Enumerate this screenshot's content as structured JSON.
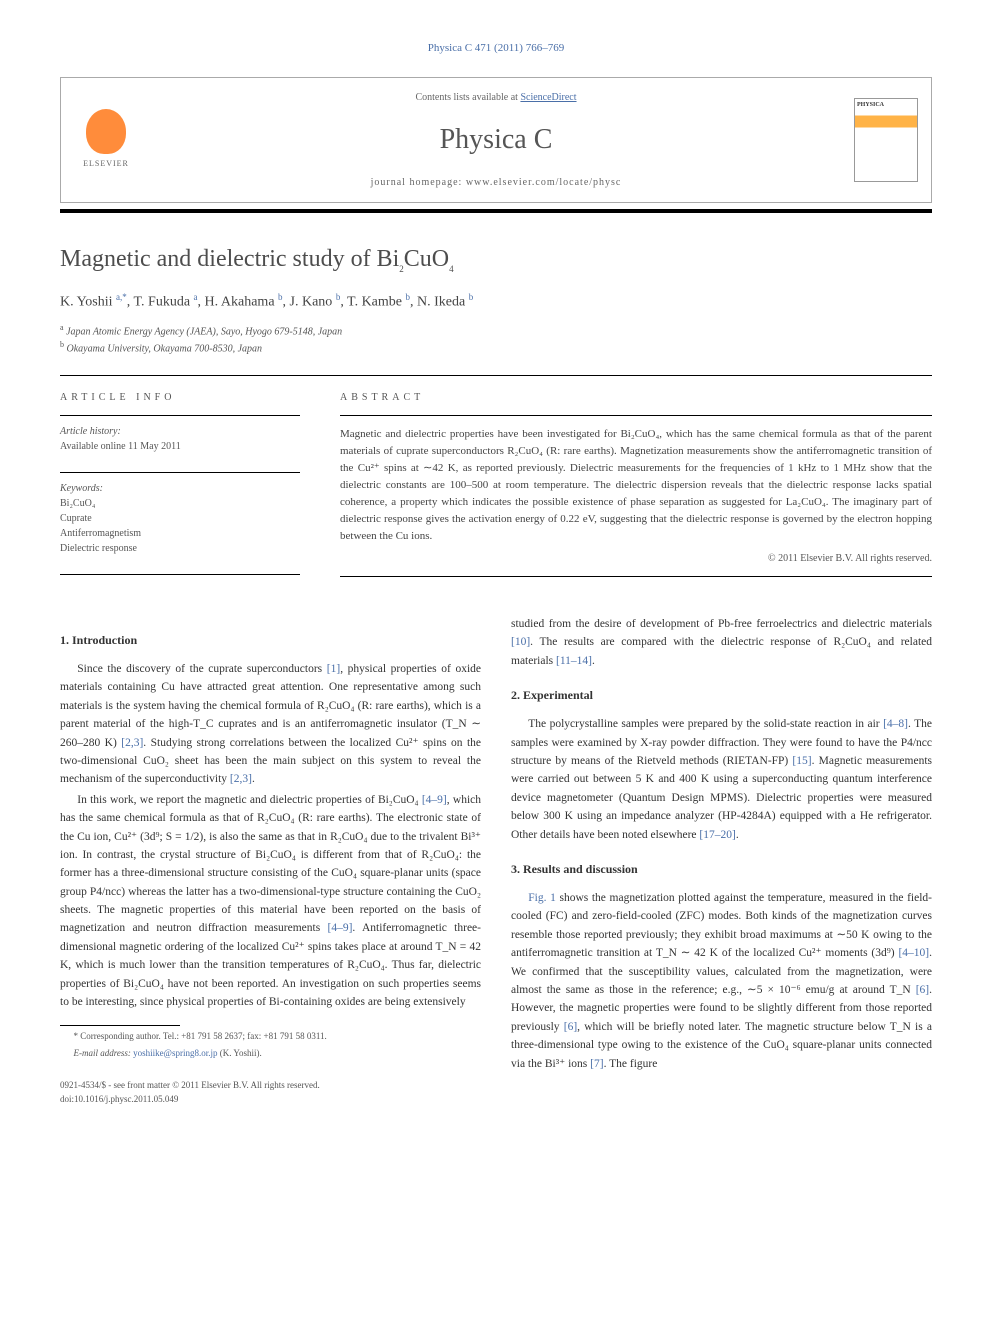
{
  "citation": "Physica C 471 (2011) 766–769",
  "masthead": {
    "contents_prefix": "Contents lists available at ",
    "contents_link": "ScienceDirect",
    "journal": "Physica C",
    "homepage_prefix": "journal homepage: ",
    "homepage": "www.elsevier.com/locate/physc",
    "publisher": "ELSEVIER"
  },
  "article": {
    "title_pre": "Magnetic and dielectric study of Bi",
    "title_sub1": "2",
    "title_mid": "CuO",
    "title_sub2": "4",
    "authors_html": "K. Yoshii <sup>a,*</sup>, T. Fukuda <sup>a</sup>, H. Akahama <sup>b</sup>, J. Kano <sup>b</sup>, T. Kambe <sup>b</sup>, N. Ikeda <sup>b</sup>",
    "affiliations": [
      "a Japan Atomic Energy Agency (JAEA), Sayo, Hyogo 679-5148, Japan",
      "b Okayama University, Okayama 700-8530, Japan"
    ]
  },
  "info": {
    "heading": "ARTICLE INFO",
    "history_label": "Article history:",
    "history_value": "Available online 11 May 2011",
    "keywords_label": "Keywords:",
    "keywords": [
      "Bi₂CuO₄",
      "Cuprate",
      "Antiferromagnetism",
      "Dielectric response"
    ]
  },
  "abstract": {
    "heading": "ABSTRACT",
    "text": "Magnetic and dielectric properties have been investigated for Bi₂CuO₄, which has the same chemical formula as that of the parent materials of cuprate superconductors R₂CuO₄ (R: rare earths). Magnetization measurements show the antiferromagnetic transition of the Cu²⁺ spins at ∼42 K, as reported previously. Dielectric measurements for the frequencies of 1 kHz to 1 MHz show that the dielectric constants are 100–500 at room temperature. The dielectric dispersion reveals that the dielectric response lacks spatial coherence, a property which indicates the possible existence of phase separation as suggested for La₂CuO₄. The imaginary part of dielectric response gives the activation energy of 0.22 eV, suggesting that the dielectric response is governed by the electron hopping between the Cu ions.",
    "copyright": "© 2011 Elsevier B.V. All rights reserved."
  },
  "sections": {
    "intro_heading": "1. Introduction",
    "intro_p1": "Since the discovery of the cuprate superconductors [1], physical properties of oxide materials containing Cu have attracted great attention. One representative among such materials is the system having the chemical formula of R₂CuO₄ (R: rare earths), which is a parent material of the high-T_C cuprates and is an antiferromagnetic insulator (T_N ∼ 260–280 K) [2,3]. Studying strong correlations between the localized Cu²⁺ spins on the two-dimensional CuO₂ sheet has been the main subject on this system to reveal the mechanism of the superconductivity [2,3].",
    "intro_p2": "In this work, we report the magnetic and dielectric properties of Bi₂CuO₄ [4–9], which has the same chemical formula as that of R₂CuO₄ (R: rare earths). The electronic state of the Cu ion, Cu²⁺ (3d⁹; S = 1/2), is also the same as that in R₂CuO₄ due to the trivalent Bi³⁺ ion. In contrast, the crystal structure of Bi₂CuO₄ is different from that of R₂CuO₄: the former has a three-dimensional structure consisting of the CuO₄ square-planar units (space group P4/ncc) whereas the latter has a two-dimensional-type structure containing the CuO₂ sheets. The magnetic properties of this material have been reported on the basis of magnetization and neutron diffraction measurements [4–9]. Antiferromagnetic three-dimensional magnetic ordering of the localized Cu²⁺ spins takes place at around T_N = 42 K, which is much lower than the transition temperatures of R₂CuO₄. Thus far, dielectric properties of Bi₂CuO₄ have not been reported. An investigation on such properties seems to be interesting, since physical properties of Bi-containing oxides are being extensively",
    "intro_p2_cont": "studied from the desire of development of Pb-free ferroelectrics and dielectric materials [10]. The results are compared with the dielectric response of R₂CuO₄ and related materials [11–14].",
    "exp_heading": "2. Experimental",
    "exp_p1": "The polycrystalline samples were prepared by the solid-state reaction in air [4–8]. The samples were examined by X-ray powder diffraction. They were found to have the P4/ncc structure by means of the Rietveld methods (RIETAN-FP) [15]. Magnetic measurements were carried out between 5 K and 400 K using a superconducting quantum interference device magnetometer (Quantum Design MPMS). Dielectric properties were measured below 300 K using an impedance analyzer (HP-4284A) equipped with a He refrigerator. Other details have been noted elsewhere [17–20].",
    "res_heading": "3. Results and discussion",
    "res_p1": "Fig. 1 shows the magnetization plotted against the temperature, measured in the field-cooled (FC) and zero-field-cooled (ZFC) modes. Both kinds of the magnetization curves resemble those reported previously; they exhibit broad maximums at ∼50 K owing to the antiferromagnetic transition at T_N ∼ 42 K of the localized Cu²⁺ moments (3d⁹) [4–10]. We confirmed that the susceptibility values, calculated from the magnetization, were almost the same as those in the reference; e.g., ∼5 × 10⁻⁶ emu/g at around T_N [6]. However, the magnetic properties were found to be slightly different from those reported previously [6], which will be briefly noted later. The magnetic structure below T_N is a three-dimensional type owing to the existence of the CuO₄ square-planar units connected via the Bi³⁺ ions [7]. The figure"
  },
  "footnote": {
    "corr": "* Corresponding author. Tel.: +81 791 58 2637; fax: +81 791 58 0311.",
    "email_label": "E-mail address:",
    "email": "yoshiike@spring8.or.jp",
    "email_who": "(K. Yoshii)."
  },
  "footer": {
    "left1": "0921-4534/$ - see front matter © 2011 Elsevier B.V. All rights reserved.",
    "left2": "doi:10.1016/j.physc.2011.05.049"
  },
  "colors": {
    "link": "#4a6fa8",
    "elsevier_orange": "#ff8c3b",
    "text": "#333333",
    "muted": "#555555"
  }
}
